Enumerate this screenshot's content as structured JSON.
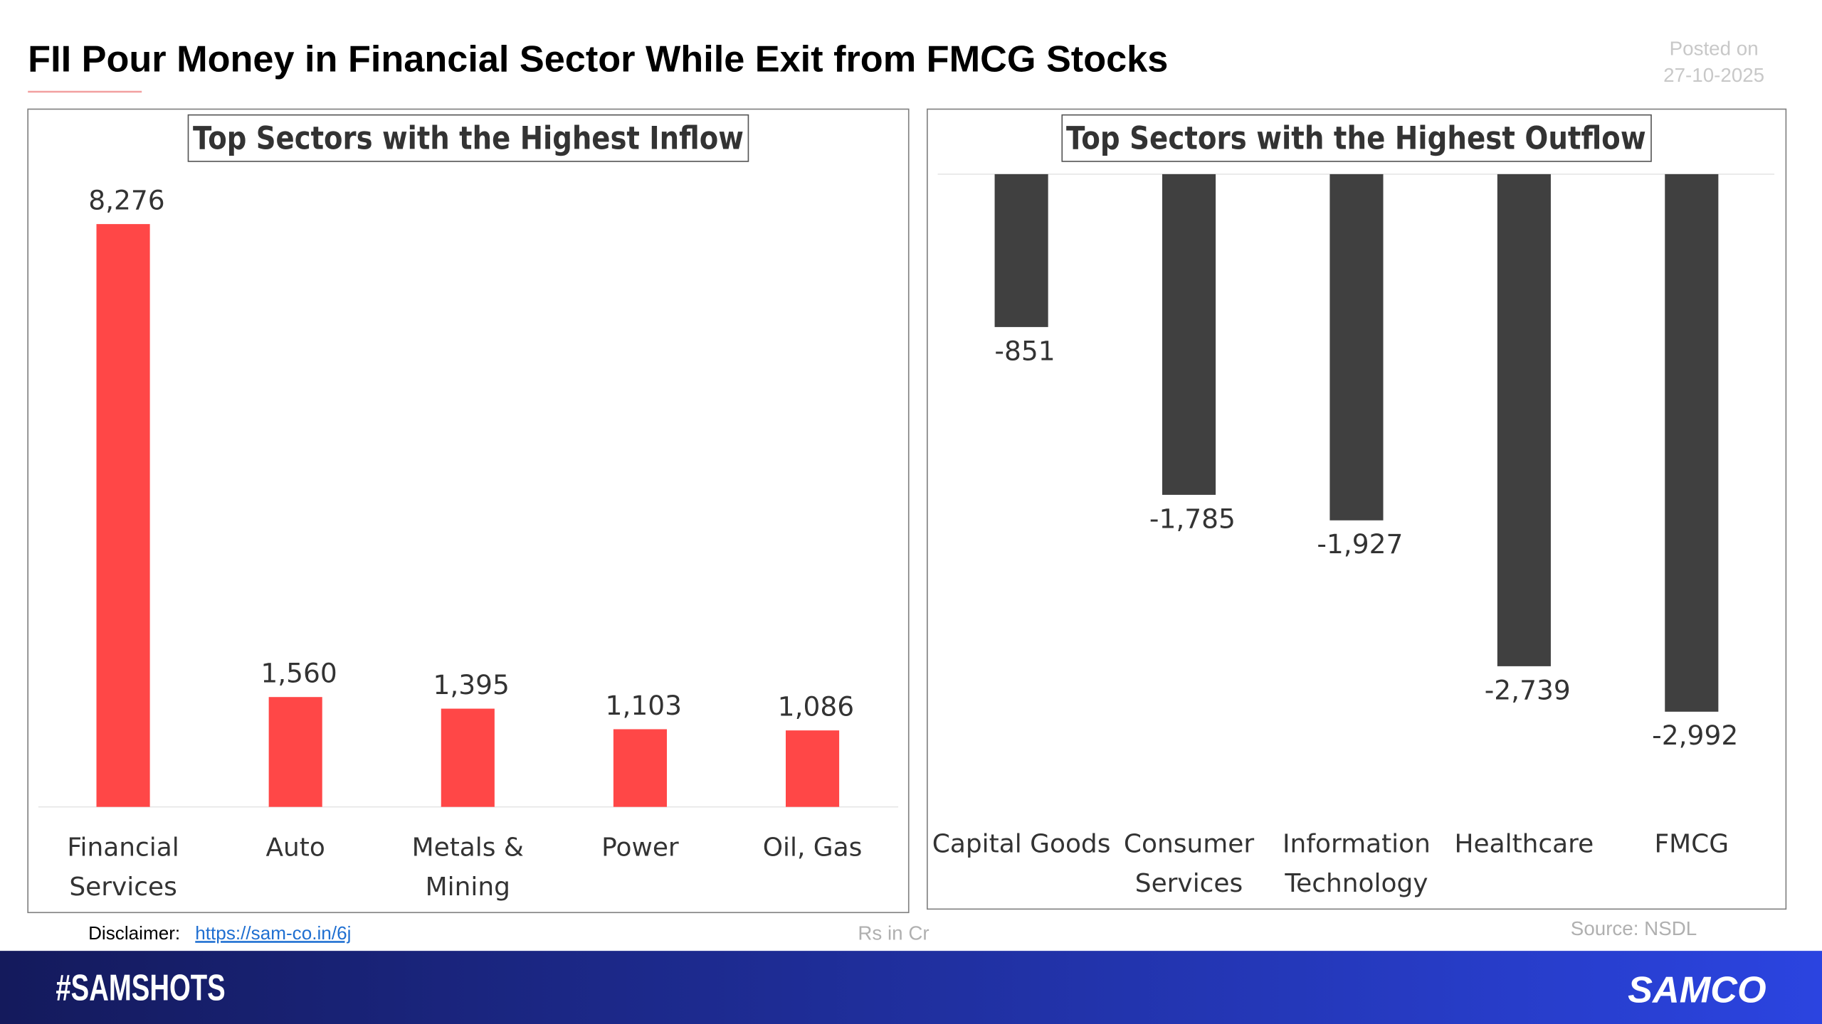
{
  "title": "FII Pour Money in Financial Sector While Exit from FMCG Stocks",
  "posted_label": "Posted on",
  "posted_date": "27-10-2025",
  "chart_data": [
    {
      "type": "bar",
      "title": "Top Sectors with the Highest Inflow",
      "categories": [
        "Financial Services",
        "Auto",
        "Metals & Mining",
        "Power",
        "Oil, Gas"
      ],
      "values": [
        8276,
        1560,
        1395,
        1103,
        1086
      ],
      "value_labels": [
        "8,276",
        "1,560",
        "1,395",
        "1,103",
        "1,086"
      ],
      "color": "#ff4747"
    },
    {
      "type": "bar",
      "title": "Top Sectors with the Highest Outflow",
      "categories": [
        "Capital Goods",
        "Consumer Services",
        "Information Technology",
        "Healthcare",
        "FMCG"
      ],
      "values": [
        -851,
        -1785,
        -1927,
        -2739,
        -2992
      ],
      "value_labels": [
        "-851",
        "-1,785",
        "-1,927",
        "-2,739",
        "-2,992"
      ],
      "color": "#404040"
    }
  ],
  "footer": {
    "disclaimer_label": "Disclaimer:",
    "disclaimer_link": "https://sam-co.in/6j",
    "unit_note": "Rs in Cr",
    "source": "Source: NSDL",
    "hashtag": "#SAMSHOTS",
    "brand": "SAMCO"
  }
}
